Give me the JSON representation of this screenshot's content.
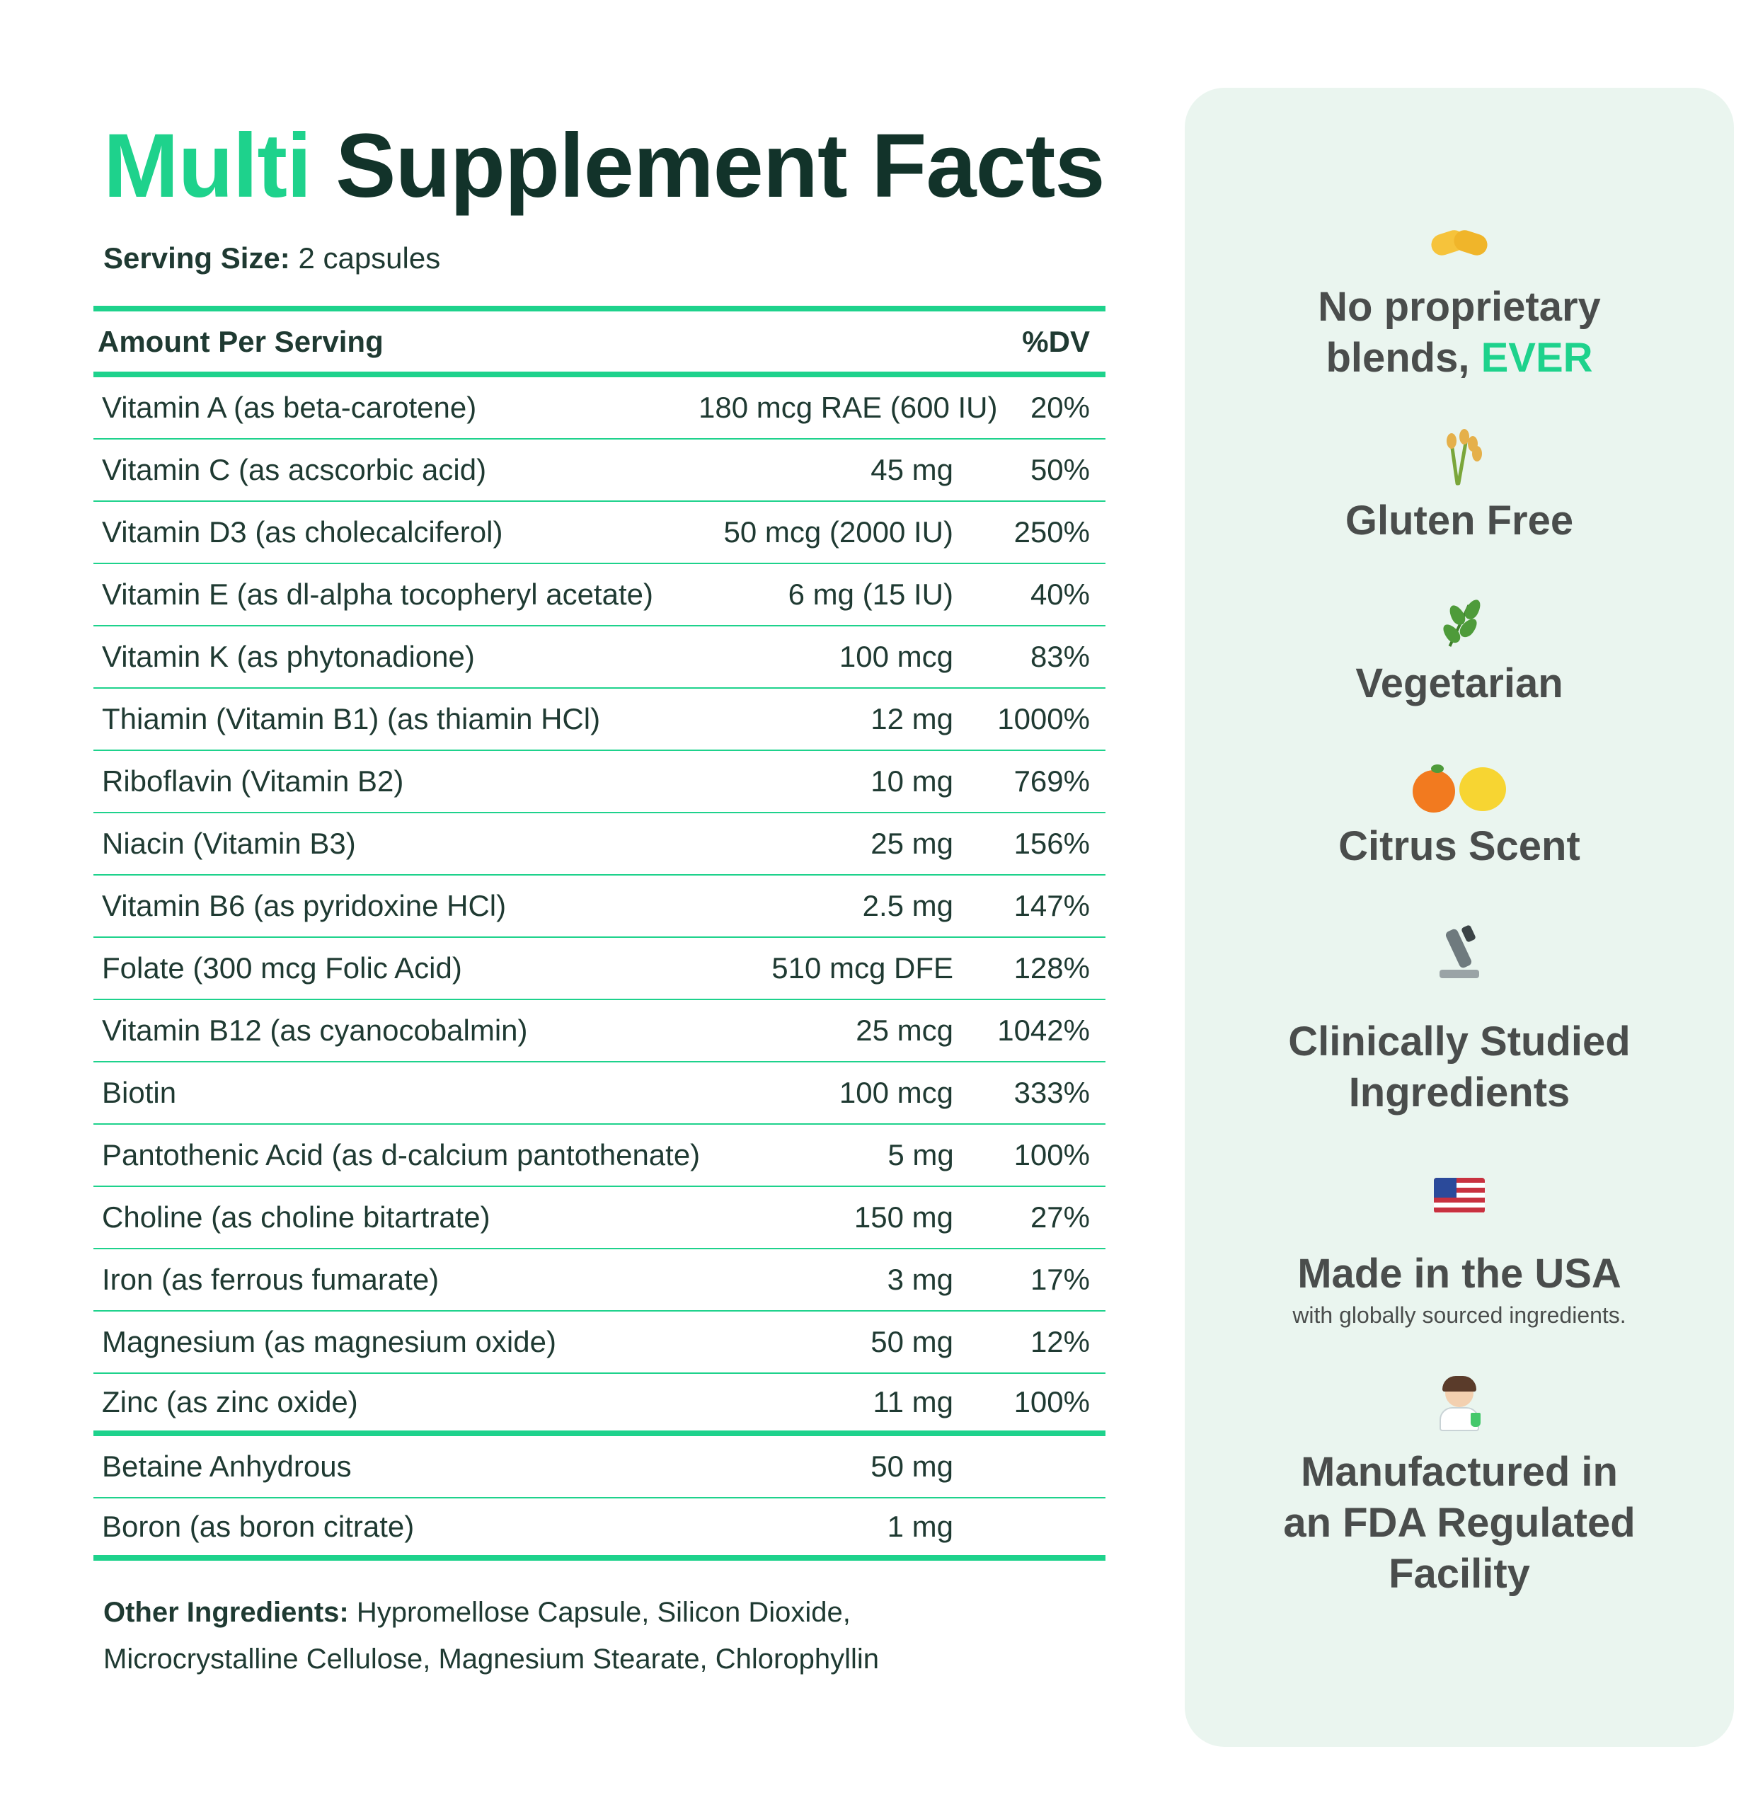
{
  "title": {
    "accent": "Multi",
    "rest": "Supplement Facts"
  },
  "serving": {
    "label": "Serving Size:",
    "value": "2 capsules"
  },
  "table": {
    "header_name": "Amount Per Serving",
    "header_dv": "%DV",
    "rows": [
      {
        "name": "Vitamin A (as beta-carotene)",
        "amount": "180 mcg RAE (600 IU)",
        "dv": "20%"
      },
      {
        "name": "Vitamin C (as acscorbic acid)",
        "amount": "45 mg",
        "dv": "50%"
      },
      {
        "name": "Vitamin D3 (as cholecalciferol)",
        "amount": "50 mcg (2000 IU)",
        "dv": "250%"
      },
      {
        "name": "Vitamin E (as dl-alpha tocopheryl acetate)",
        "amount": "6 mg (15 IU)",
        "dv": "40%"
      },
      {
        "name": "Vitamin K (as phytonadione)",
        "amount": "100 mcg",
        "dv": "83%"
      },
      {
        "name": "Thiamin (Vitamin B1) (as thiamin HCl)",
        "amount": "12 mg",
        "dv": "1000%"
      },
      {
        "name": "Riboflavin (Vitamin B2)",
        "amount": "10 mg",
        "dv": "769%"
      },
      {
        "name": "Niacin (Vitamin B3)",
        "amount": "25 mg",
        "dv": "156%"
      },
      {
        "name": "Vitamin B6 (as pyridoxine HCl)",
        "amount": "2.5 mg",
        "dv": "147%"
      },
      {
        "name": "Folate (300 mcg Folic Acid)",
        "amount": "510 mcg DFE",
        "dv": "128%"
      },
      {
        "name": "Vitamin B12 (as cyanocobalmin)",
        "amount": "25 mcg",
        "dv": "1042%"
      },
      {
        "name": "Biotin",
        "amount": "100 mcg",
        "dv": "333%"
      },
      {
        "name": "Pantothenic Acid (as d-calcium pantothenate)",
        "amount": "5 mg",
        "dv": "100%"
      },
      {
        "name": "Choline (as choline bitartrate)",
        "amount": "150 mg",
        "dv": "27%"
      },
      {
        "name": "Iron (as ferrous fumarate)",
        "amount": "3 mg",
        "dv": "17%"
      },
      {
        "name": "Magnesium (as magnesium oxide)",
        "amount": "50 mg",
        "dv": "12%"
      },
      {
        "name": "Zinc (as zinc oxide)",
        "amount": "11 mg",
        "dv": "100%"
      },
      {
        "name": "Betaine Anhydrous",
        "amount": "50 mg",
        "dv": ""
      },
      {
        "name": "Boron (as boron citrate)",
        "amount": "1 mg",
        "dv": ""
      }
    ]
  },
  "other_ingredients": {
    "label": "Other Ingredients:",
    "value": "Hypromellose Capsule, Silicon Dioxide, Microcrystalline Cellulose, Magnesium Stearate, Chlorophyllin"
  },
  "badges": {
    "proprietary": {
      "icon": "handshake-icon",
      "line1": "No proprietary",
      "line2_prefix": "blends,",
      "line2_accent": "EVER"
    },
    "gluten": {
      "icon": "wheat-icon",
      "label": "Gluten Free"
    },
    "vegetarian": {
      "icon": "herb-icon",
      "label": "Vegetarian"
    },
    "citrus": {
      "icon": "citrus-icon",
      "label": "Citrus Scent"
    },
    "clinical": {
      "icon": "microscope-icon",
      "line1": "Clinically Studied",
      "line2": "Ingredients"
    },
    "usa": {
      "icon": "us-flag-icon",
      "label": "Made in the USA",
      "sub": "with globally sourced ingredients."
    },
    "fda": {
      "icon": "scientist-icon",
      "line1": "Manufactured in",
      "line2": "an FDA Regulated",
      "line3": "Facility"
    }
  },
  "colors": {
    "accent": "#1ed28c",
    "heading": "#12332a",
    "panel": "#eaf5ef",
    "badge_text": "#4a4d4c"
  }
}
